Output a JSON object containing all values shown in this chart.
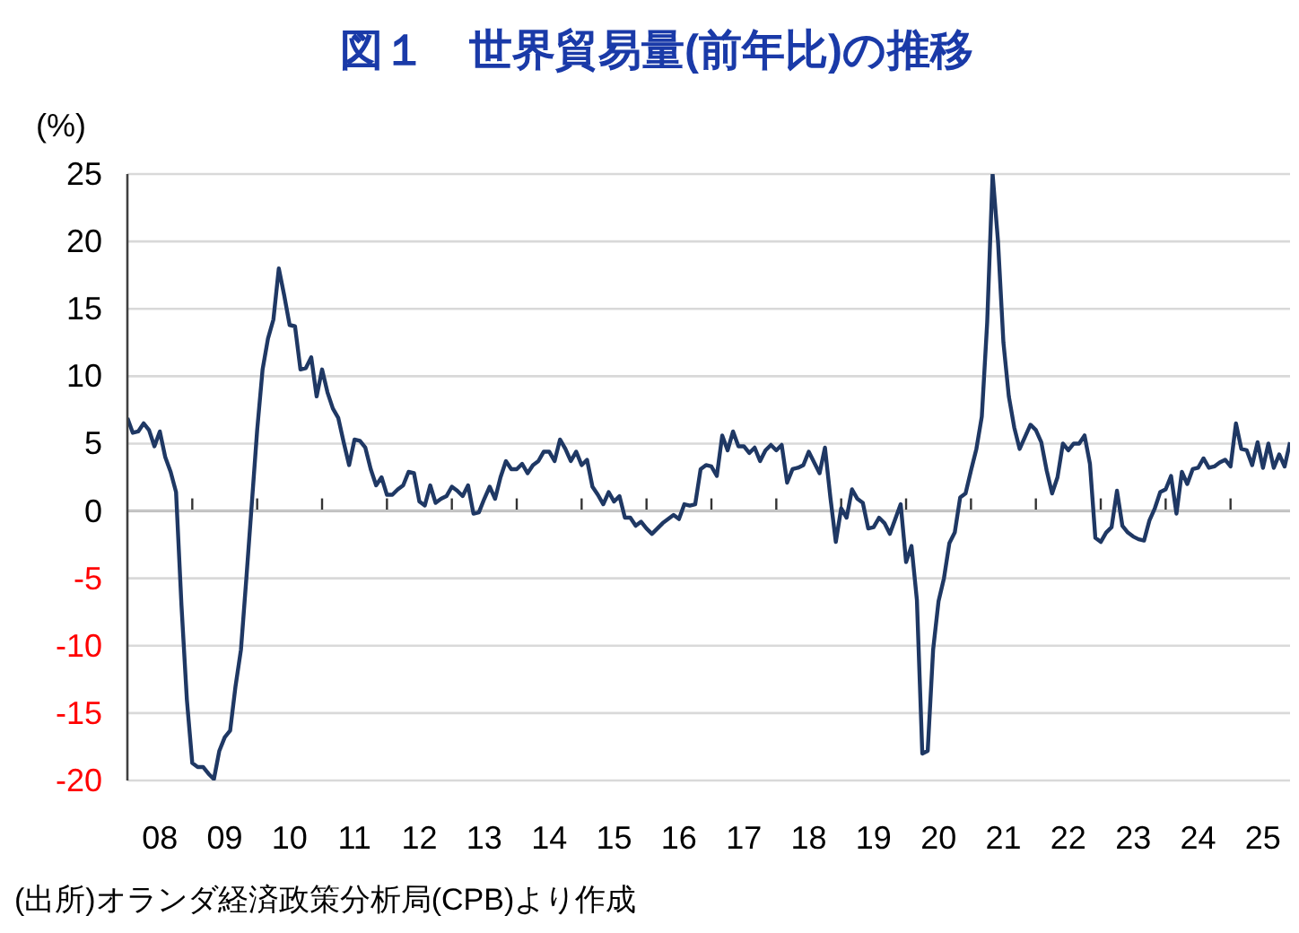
{
  "chart_data": {
    "type": "line",
    "title": "図１　世界貿易量(前年比)の推移",
    "ylabel": "(%)",
    "annotations": [
      "(出所)オランダ経済政策分析局(CPB)より作成"
    ],
    "color": "#1f3864",
    "x": [
      "2008-01",
      "2008-02",
      "2008-03",
      "2008-04",
      "2008-05",
      "2008-06",
      "2008-07",
      "2008-08",
      "2008-09",
      "2008-10",
      "2008-11",
      "2008-12",
      "2009-01",
      "2009-02",
      "2009-03",
      "2009-04",
      "2009-05",
      "2009-06",
      "2009-07",
      "2009-08",
      "2009-09",
      "2009-10",
      "2009-11",
      "2009-12",
      "2010-01",
      "2010-02",
      "2010-03",
      "2010-04",
      "2010-05",
      "2010-06",
      "2010-07",
      "2010-08",
      "2010-09",
      "2010-10",
      "2010-11",
      "2010-12",
      "2011-01",
      "2011-02",
      "2011-03",
      "2011-04",
      "2011-05",
      "2011-06",
      "2011-07",
      "2011-08",
      "2011-09",
      "2011-10",
      "2011-11",
      "2011-12",
      "2012-01",
      "2012-02",
      "2012-03",
      "2012-04",
      "2012-05",
      "2012-06",
      "2012-07",
      "2012-08",
      "2012-09",
      "2012-10",
      "2012-11",
      "2012-12",
      "2013-01",
      "2013-02",
      "2013-03",
      "2013-04",
      "2013-05",
      "2013-06",
      "2013-07",
      "2013-08",
      "2013-09",
      "2013-10",
      "2013-11",
      "2013-12",
      "2014-01",
      "2014-02",
      "2014-03",
      "2014-04",
      "2014-05",
      "2014-06",
      "2014-07",
      "2014-08",
      "2014-09",
      "2014-10",
      "2014-11",
      "2014-12",
      "2015-01",
      "2015-02",
      "2015-03",
      "2015-04",
      "2015-05",
      "2015-06",
      "2015-07",
      "2015-08",
      "2015-09",
      "2015-10",
      "2015-11",
      "2015-12",
      "2016-01",
      "2016-02",
      "2016-03",
      "2016-04",
      "2016-05",
      "2016-06",
      "2016-07",
      "2016-08",
      "2016-09",
      "2016-10",
      "2016-11",
      "2016-12",
      "2017-01",
      "2017-02",
      "2017-03",
      "2017-04",
      "2017-05",
      "2017-06",
      "2017-07",
      "2017-08",
      "2017-09",
      "2017-10",
      "2017-11",
      "2017-12",
      "2018-01",
      "2018-02",
      "2018-03",
      "2018-04",
      "2018-05",
      "2018-06",
      "2018-07",
      "2018-08",
      "2018-09",
      "2018-10",
      "2018-11",
      "2018-12",
      "2019-01",
      "2019-02",
      "2019-03",
      "2019-04",
      "2019-05",
      "2019-06",
      "2019-07",
      "2019-08",
      "2019-09",
      "2019-10",
      "2019-11",
      "2019-12",
      "2020-01",
      "2020-02",
      "2020-03",
      "2020-04",
      "2020-05",
      "2020-06",
      "2020-07",
      "2020-08",
      "2020-09",
      "2020-10",
      "2020-11",
      "2020-12",
      "2021-01",
      "2021-02",
      "2021-03",
      "2021-04",
      "2021-05",
      "2021-06",
      "2021-07",
      "2021-08",
      "2021-09",
      "2021-10",
      "2021-11",
      "2021-12",
      "2022-01",
      "2022-02",
      "2022-03",
      "2022-04",
      "2022-05",
      "2022-06",
      "2022-07",
      "2022-08",
      "2022-09",
      "2022-10",
      "2022-11",
      "2022-12",
      "2023-01",
      "2023-02",
      "2023-03",
      "2023-04",
      "2023-05",
      "2023-06",
      "2023-07",
      "2023-08",
      "2023-09",
      "2023-10",
      "2023-11",
      "2023-12",
      "2024-01",
      "2024-02",
      "2024-03",
      "2024-04",
      "2024-05",
      "2024-06",
      "2024-07",
      "2024-08",
      "2024-09",
      "2024-10",
      "2024-11",
      "2024-12",
      "2025-01",
      "2025-02",
      "2025-03",
      "2025-04",
      "2025-05",
      "2025-06",
      "2025-07",
      "2025-08",
      "2025-09",
      "2025-10",
      "2025-11",
      "2025-12"
    ],
    "values": [
      6.9,
      5.8,
      5.9,
      6.5,
      6.0,
      4.8,
      5.9,
      4.0,
      2.9,
      1.4,
      -7,
      -14,
      -18.7,
      -19,
      -19,
      -19.5,
      -19.9,
      -17.8,
      -16.8,
      -16.3,
      -13,
      -10.3,
      -5,
      0.5,
      6,
      10.5,
      12.8,
      14.2,
      18,
      16,
      13.8,
      13.7,
      10.5,
      10.6,
      11.4,
      8.5,
      10.5,
      8.8,
      7.6,
      6.9,
      5.1,
      3.4,
      5.3,
      5.2,
      4.7,
      3.1,
      1.9,
      2.5,
      1.2,
      1.2,
      1.6,
      1.9,
      2.9,
      2.8,
      0.7,
      0.4,
      1.9,
      0.6,
      0.9,
      1.1,
      1.8,
      1.5,
      1.1,
      1.9,
      -0.2,
      -0.1,
      0.9,
      1.8,
      0.9,
      2.5,
      3.7,
      3.1,
      3.1,
      3.5,
      2.8,
      3.4,
      3.7,
      4.4,
      4.4,
      3.7,
      5.3,
      4.6,
      3.7,
      4.4,
      3.4,
      3.8,
      1.8,
      1.2,
      0.5,
      1.4,
      0.7,
      1.1,
      -0.5,
      -0.5,
      -1.1,
      -0.8,
      -1.3,
      -1.7,
      -1.3,
      -0.9,
      -0.6,
      -0.3,
      -0.6,
      0.5,
      0.4,
      0.5,
      3.1,
      3.4,
      3.3,
      2.6,
      5.6,
      4.5,
      5.9,
      4.8,
      4.8,
      4.3,
      4.7,
      3.7,
      4.5,
      4.9,
      4.5,
      4.9,
      2.1,
      3.1,
      3.2,
      3.4,
      4.4,
      3.6,
      2.8,
      4.7,
      1.0,
      -2.3,
      0.2,
      -0.5,
      1.6,
      0.9,
      0.6,
      -1.3,
      -1.2,
      -0.5,
      -0.9,
      -1.7,
      -0.6,
      0.5,
      -3.8,
      -2.6,
      -6.6,
      -18,
      -17.8,
      -10.3,
      -6.7,
      -5,
      -2.4,
      -1.6,
      1,
      1.3,
      3,
      4.6,
      7,
      14,
      25,
      20,
      12.5,
      8.5,
      6.2,
      4.6,
      5.5,
      6.4,
      6,
      5.1,
      3,
      1.3,
      2.5,
      5,
      4.5,
      5,
      5,
      5.6,
      3.5,
      -2,
      -2.3,
      -1.6,
      -1.2,
      1.5,
      -1.1,
      -1.6,
      -1.9,
      -2.1,
      -2.2,
      -0.7,
      0.2,
      1.4,
      1.6,
      2.6,
      -0.2,
      2.9,
      2.0,
      3.1,
      3.2,
      3.9,
      3.2,
      3.3,
      3.6,
      3.8,
      3.3,
      6.5,
      4.6,
      4.5,
      3.4,
      5.1,
      3.2,
      5,
      3.2,
      4.2,
      3.3,
      5.1
    ],
    "xlim": [
      "2008-01",
      "2025-12"
    ],
    "xticks": [
      {
        "value": "2008-07",
        "label": "08"
      },
      {
        "value": "2009-07",
        "label": "09"
      },
      {
        "value": "2010-07",
        "label": "10"
      },
      {
        "value": "2011-07",
        "label": "11"
      },
      {
        "value": "2012-07",
        "label": "12"
      },
      {
        "value": "2013-07",
        "label": "13"
      },
      {
        "value": "2014-07",
        "label": "14"
      },
      {
        "value": "2015-07",
        "label": "15"
      },
      {
        "value": "2016-07",
        "label": "16"
      },
      {
        "value": "2017-07",
        "label": "17"
      },
      {
        "value": "2018-07",
        "label": "18"
      },
      {
        "value": "2019-07",
        "label": "19"
      },
      {
        "value": "2020-07",
        "label": "20"
      },
      {
        "value": "2021-07",
        "label": "21"
      },
      {
        "value": "2022-07",
        "label": "22"
      },
      {
        "value": "2023-07",
        "label": "23"
      },
      {
        "value": "2024-07",
        "label": "24"
      },
      {
        "value": "2025-07",
        "label": "25"
      },
      {
        "value": "2009-01",
        "label": null
      },
      {
        "value": "2010-01",
        "label": null
      },
      {
        "value": "2011-01",
        "label": null
      },
      {
        "value": "2012-01",
        "label": null
      },
      {
        "value": "2013-01",
        "label": null
      },
      {
        "value": "2014-01",
        "label": null
      },
      {
        "value": "2015-01",
        "label": null
      },
      {
        "value": "2016-01",
        "label": null
      },
      {
        "value": "2017-01",
        "label": null
      },
      {
        "value": "2018-01",
        "label": null
      },
      {
        "value": "2019-01",
        "label": null
      },
      {
        "value": "2020-01",
        "label": null
      },
      {
        "value": "2021-01",
        "label": null
      },
      {
        "value": "2022-01",
        "label": null
      },
      {
        "value": "2023-01",
        "label": null
      },
      {
        "value": "2024-01",
        "label": null
      },
      {
        "value": "2025-01",
        "label": null
      }
    ],
    "ylim": [
      -20,
      25
    ],
    "yticks": [
      -20,
      -15,
      -10,
      -5,
      0,
      5,
      10,
      15,
      20,
      25
    ],
    "grid": "y"
  }
}
